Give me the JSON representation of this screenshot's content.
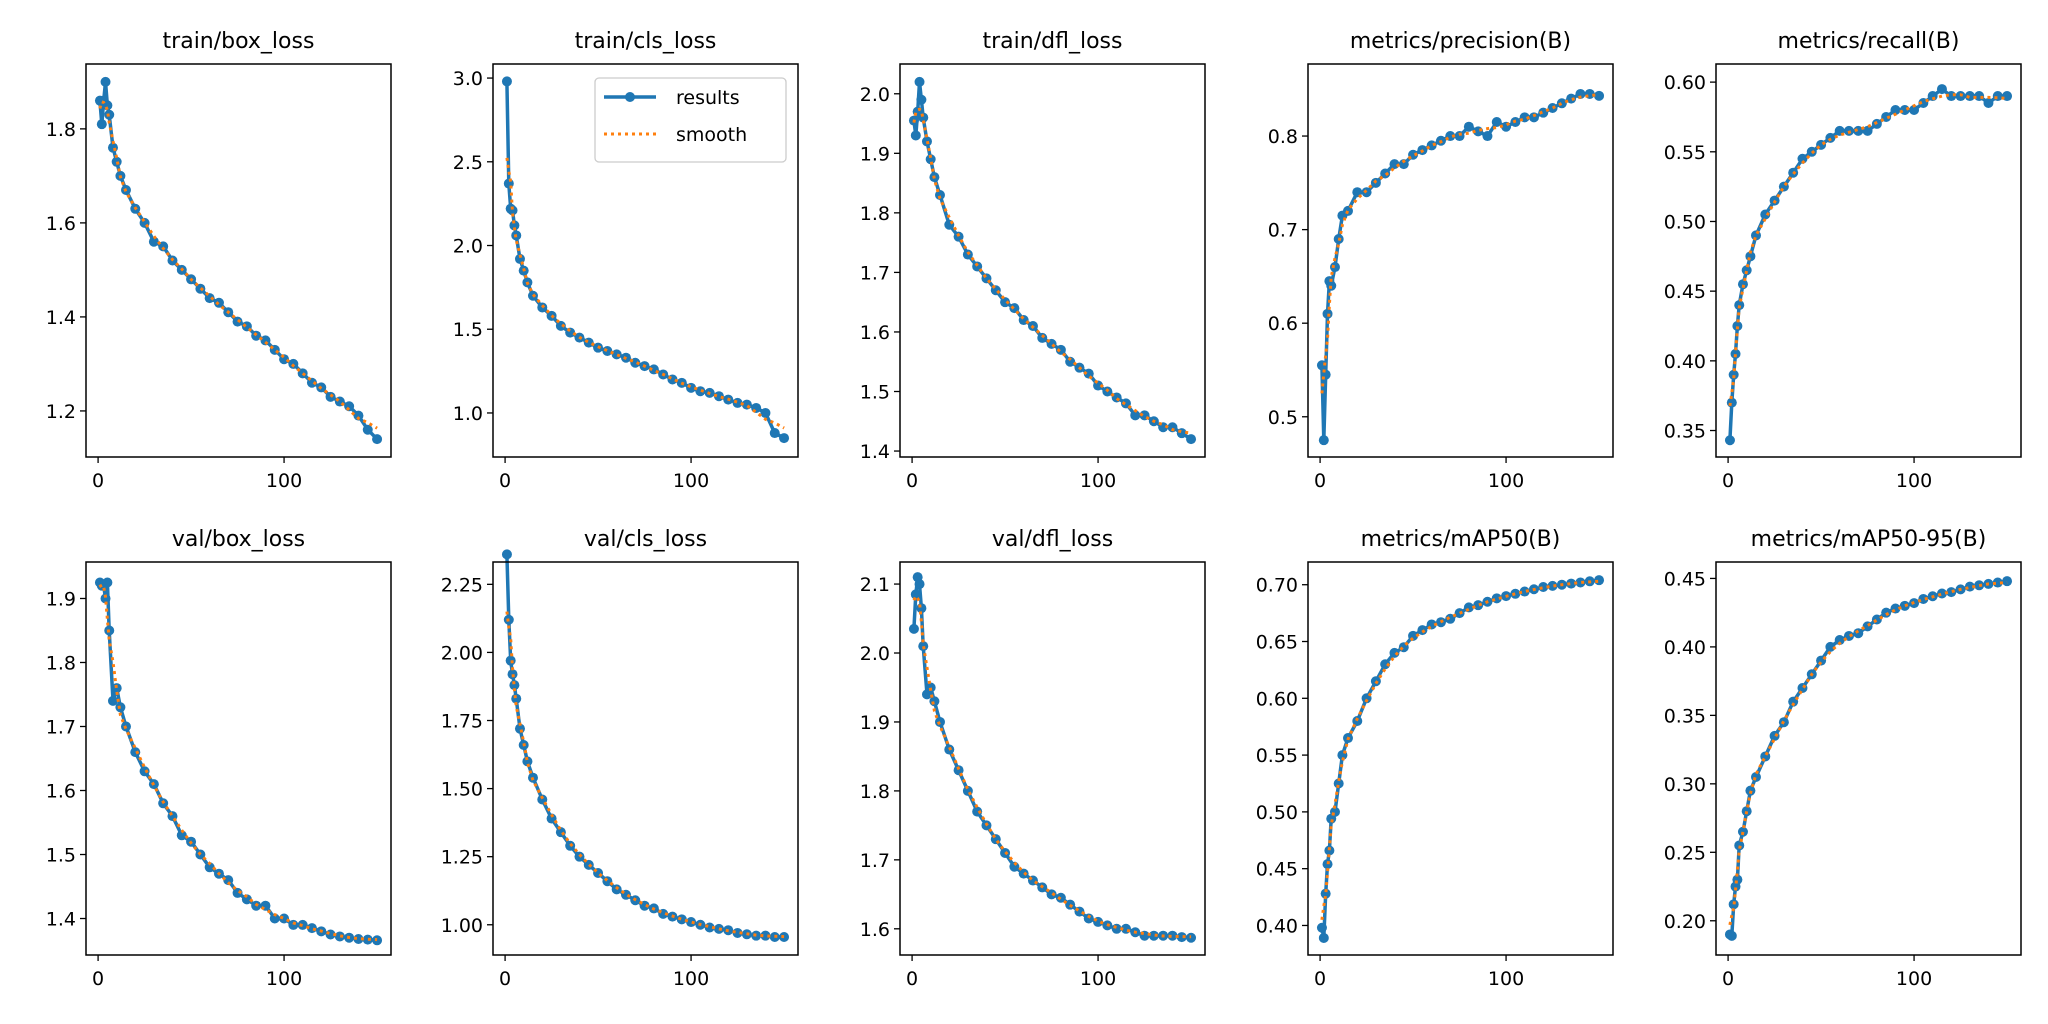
{
  "legend": {
    "results": "results",
    "smooth": "smooth",
    "placement": "top-right of train/cls_loss"
  },
  "colors": {
    "results": "#1f77b4",
    "smooth": "#ff7f0e"
  },
  "chart_data": {
    "type": "line",
    "x": [
      1,
      2,
      3,
      4,
      5,
      6,
      8,
      10,
      12,
      15,
      20,
      25,
      30,
      35,
      40,
      45,
      50,
      55,
      60,
      65,
      70,
      75,
      80,
      85,
      90,
      95,
      100,
      105,
      110,
      115,
      120,
      125,
      130,
      135,
      140,
      145,
      150
    ],
    "xlim": [
      -6.5,
      157.5
    ],
    "xticks": [
      0,
      100
    ],
    "xtick_labels": [
      "0",
      "100"
    ],
    "grid": false,
    "subplots": [
      {
        "title": "train/box_loss",
        "ylim": [
          1.102,
          1.938
        ],
        "yticks": [
          1.2,
          1.4,
          1.6,
          1.8
        ],
        "ytick_labels": [
          "1.2",
          "1.4",
          "1.6",
          "1.8"
        ],
        "values": [
          1.86,
          1.81,
          1.86,
          1.9,
          1.85,
          1.83,
          1.76,
          1.73,
          1.7,
          1.67,
          1.63,
          1.6,
          1.56,
          1.55,
          1.52,
          1.5,
          1.48,
          1.46,
          1.44,
          1.43,
          1.41,
          1.39,
          1.38,
          1.36,
          1.35,
          1.33,
          1.31,
          1.3,
          1.28,
          1.26,
          1.25,
          1.23,
          1.22,
          1.21,
          1.19,
          1.16,
          1.14
        ]
      },
      {
        "title": "train/cls_loss",
        "ylim": [
          0.737,
          3.084
        ],
        "yticks": [
          1.0,
          1.5,
          2.0,
          2.5,
          3.0
        ],
        "ytick_labels": [
          "1.0",
          "1.5",
          "2.0",
          "2.5",
          "3.0"
        ],
        "legend": true,
        "values": [
          2.98,
          2.37,
          2.22,
          2.21,
          2.12,
          2.06,
          1.92,
          1.85,
          1.78,
          1.7,
          1.63,
          1.58,
          1.52,
          1.48,
          1.45,
          1.42,
          1.39,
          1.37,
          1.35,
          1.33,
          1.3,
          1.28,
          1.26,
          1.23,
          1.2,
          1.18,
          1.15,
          1.13,
          1.12,
          1.1,
          1.08,
          1.06,
          1.05,
          1.03,
          1.0,
          0.88,
          0.85
        ]
      },
      {
        "title": "train/dfl_loss",
        "ylim": [
          1.39,
          2.05
        ],
        "yticks": [
          1.4,
          1.5,
          1.6,
          1.7,
          1.8,
          1.9,
          2.0
        ],
        "ytick_labels": [
          "1.4",
          "1.5",
          "1.6",
          "1.7",
          "1.8",
          "1.9",
          "2.0"
        ],
        "values": [
          1.955,
          1.93,
          1.97,
          2.02,
          1.99,
          1.96,
          1.92,
          1.89,
          1.86,
          1.83,
          1.78,
          1.76,
          1.73,
          1.71,
          1.69,
          1.67,
          1.65,
          1.64,
          1.62,
          1.61,
          1.59,
          1.58,
          1.57,
          1.55,
          1.54,
          1.53,
          1.51,
          1.5,
          1.49,
          1.48,
          1.46,
          1.46,
          1.45,
          1.44,
          1.44,
          1.43,
          1.42
        ]
      },
      {
        "title": "metrics/precision(B)",
        "ylim": [
          0.457,
          0.877
        ],
        "yticks": [
          0.5,
          0.6,
          0.7,
          0.8
        ],
        "ytick_labels": [
          "0.5",
          "0.6",
          "0.7",
          "0.8"
        ],
        "values": [
          0.555,
          0.475,
          0.545,
          0.61,
          0.645,
          0.64,
          0.66,
          0.69,
          0.715,
          0.72,
          0.74,
          0.74,
          0.75,
          0.76,
          0.77,
          0.77,
          0.78,
          0.785,
          0.79,
          0.795,
          0.8,
          0.8,
          0.81,
          0.805,
          0.8,
          0.815,
          0.81,
          0.815,
          0.82,
          0.82,
          0.825,
          0.83,
          0.835,
          0.84,
          0.845,
          0.845,
          0.843
        ]
      },
      {
        "title": "metrics/recall(B)",
        "ylim": [
          0.331,
          0.613
        ],
        "yticks": [
          0.35,
          0.4,
          0.45,
          0.5,
          0.55,
          0.6
        ],
        "ytick_labels": [
          "0.35",
          "0.40",
          "0.45",
          "0.50",
          "0.55",
          "0.60"
        ],
        "values": [
          0.343,
          0.37,
          0.39,
          0.405,
          0.425,
          0.44,
          0.455,
          0.465,
          0.475,
          0.49,
          0.505,
          0.515,
          0.525,
          0.535,
          0.545,
          0.55,
          0.555,
          0.56,
          0.565,
          0.565,
          0.565,
          0.565,
          0.57,
          0.575,
          0.58,
          0.58,
          0.58,
          0.585,
          0.59,
          0.595,
          0.59,
          0.59,
          0.59,
          0.59,
          0.585,
          0.59,
          0.59
        ]
      },
      {
        "title": "val/box_loss",
        "ylim": [
          1.343,
          1.957
        ],
        "yticks": [
          1.4,
          1.5,
          1.6,
          1.7,
          1.8,
          1.9
        ],
        "ytick_labels": [
          "1.4",
          "1.5",
          "1.6",
          "1.7",
          "1.8",
          "1.9"
        ],
        "values": [
          1.925,
          1.92,
          1.92,
          1.9,
          1.925,
          1.85,
          1.74,
          1.76,
          1.73,
          1.7,
          1.66,
          1.63,
          1.61,
          1.58,
          1.56,
          1.53,
          1.52,
          1.5,
          1.48,
          1.47,
          1.46,
          1.44,
          1.43,
          1.42,
          1.42,
          1.4,
          1.4,
          1.39,
          1.39,
          1.385,
          1.38,
          1.375,
          1.372,
          1.37,
          1.368,
          1.367,
          1.366
        ]
      },
      {
        "title": "val/cls_loss",
        "ylim": [
          0.889,
          2.332
        ],
        "yticks": [
          1.0,
          1.25,
          1.5,
          1.75,
          2.0,
          2.25
        ],
        "ytick_labels": [
          "1.00",
          "1.25",
          "1.50",
          "1.75",
          "2.00",
          "2.25"
        ],
        "values": [
          2.36,
          2.12,
          1.97,
          1.92,
          1.88,
          1.83,
          1.72,
          1.66,
          1.6,
          1.54,
          1.46,
          1.39,
          1.34,
          1.29,
          1.25,
          1.22,
          1.19,
          1.16,
          1.13,
          1.11,
          1.09,
          1.07,
          1.06,
          1.04,
          1.03,
          1.02,
          1.01,
          1.0,
          0.99,
          0.985,
          0.98,
          0.97,
          0.965,
          0.96,
          0.96,
          0.955,
          0.955
        ]
      },
      {
        "title": "val/dfl_loss",
        "ylim": [
          1.562,
          2.132
        ],
        "yticks": [
          1.6,
          1.7,
          1.8,
          1.9,
          2.0,
          2.1
        ],
        "ytick_labels": [
          "1.6",
          "1.7",
          "1.8",
          "1.9",
          "2.0",
          "2.1"
        ],
        "values": [
          2.035,
          2.085,
          2.11,
          2.1,
          2.065,
          2.01,
          1.94,
          1.95,
          1.93,
          1.9,
          1.86,
          1.83,
          1.8,
          1.77,
          1.75,
          1.73,
          1.71,
          1.69,
          1.68,
          1.67,
          1.66,
          1.65,
          1.645,
          1.635,
          1.625,
          1.615,
          1.61,
          1.605,
          1.6,
          1.6,
          1.595,
          1.59,
          1.59,
          1.59,
          1.59,
          1.588,
          1.587
        ]
      },
      {
        "title": "metrics/mAP50(B)",
        "ylim": [
          0.374,
          0.72
        ],
        "yticks": [
          0.4,
          0.45,
          0.5,
          0.55,
          0.6,
          0.65,
          0.7
        ],
        "ytick_labels": [
          "0.40",
          "0.45",
          "0.50",
          "0.55",
          "0.60",
          "0.65",
          "0.70"
        ],
        "values": [
          0.398,
          0.389,
          0.428,
          0.454,
          0.466,
          0.494,
          0.5,
          0.525,
          0.55,
          0.565,
          0.58,
          0.6,
          0.615,
          0.63,
          0.64,
          0.645,
          0.655,
          0.66,
          0.665,
          0.667,
          0.67,
          0.675,
          0.68,
          0.682,
          0.685,
          0.688,
          0.69,
          0.692,
          0.694,
          0.696,
          0.698,
          0.699,
          0.7,
          0.701,
          0.702,
          0.703,
          0.704
        ]
      },
      {
        "title": "metrics/mAP50-95(B)",
        "ylim": [
          0.175,
          0.462
        ],
        "yticks": [
          0.2,
          0.25,
          0.3,
          0.35,
          0.4,
          0.45
        ],
        "ytick_labels": [
          "0.20",
          "0.25",
          "0.30",
          "0.35",
          "0.40",
          "0.45"
        ],
        "values": [
          0.19,
          0.189,
          0.212,
          0.225,
          0.23,
          0.255,
          0.265,
          0.28,
          0.295,
          0.305,
          0.32,
          0.335,
          0.345,
          0.36,
          0.37,
          0.38,
          0.39,
          0.4,
          0.405,
          0.408,
          0.41,
          0.415,
          0.42,
          0.425,
          0.428,
          0.43,
          0.432,
          0.435,
          0.437,
          0.439,
          0.44,
          0.442,
          0.444,
          0.445,
          0.446,
          0.447,
          0.448
        ]
      }
    ]
  }
}
